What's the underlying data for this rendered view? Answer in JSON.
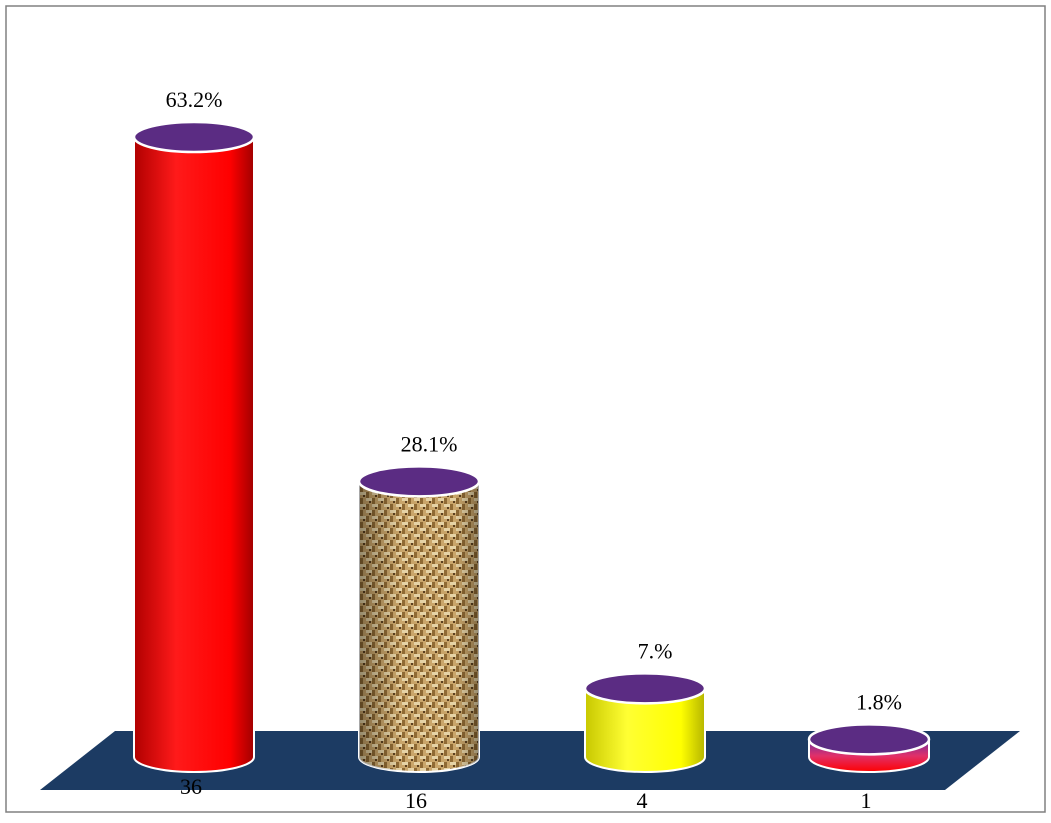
{
  "chart_data": {
    "type": "bar",
    "style": "3d-cylinder",
    "categories": [
      "36",
      "16",
      "4",
      "1"
    ],
    "values": [
      63.2,
      28.1,
      7.0,
      1.8
    ],
    "data_labels": [
      "63.2%",
      "28.1%",
      "7.%",
      "1.8%"
    ],
    "title": "",
    "xlabel": "",
    "ylabel": "",
    "ylim": [
      0,
      63.2
    ],
    "grid": false,
    "legend": "none",
    "colors": {
      "bar_1": "#ff0000",
      "bar_2": "texture-burlap",
      "bar_3": "#ffff00",
      "bar_4": "#ff0000",
      "cap": "#5b2c83",
      "floor": "#1c3b63",
      "border": "#808080"
    }
  }
}
